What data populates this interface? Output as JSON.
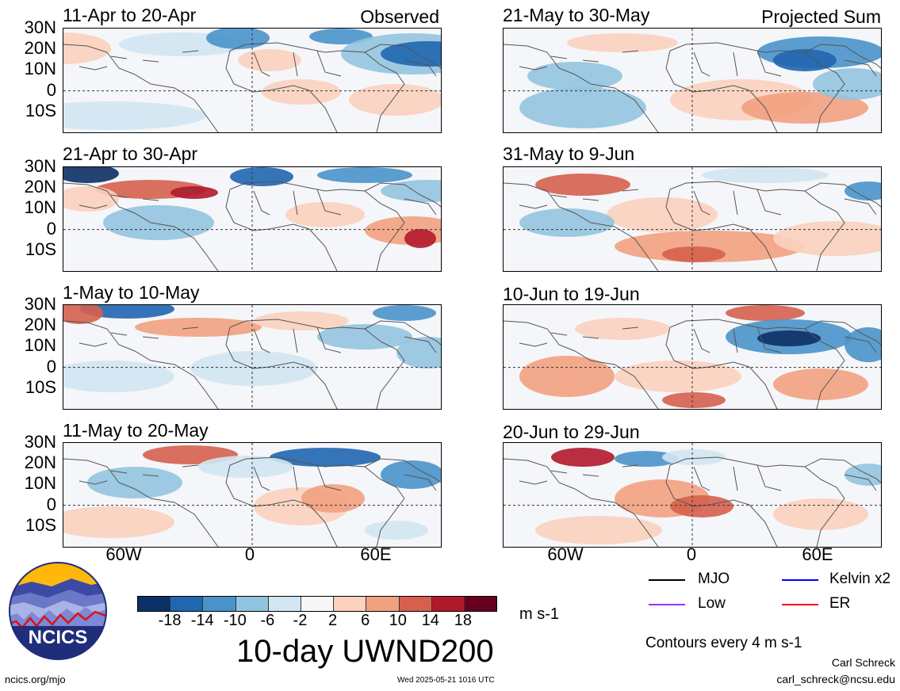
{
  "colors": {
    "land": "#f4f6f9",
    "coast": "#555555",
    "palette": [
      "#0d3066",
      "#2066b0",
      "#4a93c9",
      "#93c4df",
      "#d1e6f1",
      "#f7f7f7",
      "#fbd2bc",
      "#f2a17f",
      "#d6604d",
      "#b2182b",
      "#67001f"
    ]
  },
  "observed_label": "Observed",
  "projected_label": "Projected Sum",
  "left_panels": [
    {
      "title": "11-Apr to 20-Apr"
    },
    {
      "title": "21-Apr to 30-Apr"
    },
    {
      "title": "1-May to 10-May"
    },
    {
      "title": "11-May to 20-May"
    }
  ],
  "right_panels": [
    {
      "title": "21-May to 30-May"
    },
    {
      "title": "31-May to 9-Jun"
    },
    {
      "title": "10-Jun to 19-Jun"
    },
    {
      "title": "20-Jun to 29-Jun"
    }
  ],
  "lat_labels": [
    "30N",
    "20N",
    "10N",
    "0",
    "10S"
  ],
  "lon_labels": [
    "60W",
    "0",
    "60E"
  ],
  "colorbar_labels": [
    "-18",
    "-14",
    "-10",
    "-6",
    "-2",
    "2",
    "6",
    "10",
    "14",
    "18"
  ],
  "units": "m s-1",
  "main_title": "10-day UWND200",
  "legend": {
    "mjo": {
      "label": "MJO",
      "color": "#000000"
    },
    "kelvin": {
      "label": "Kelvin x2",
      "color": "#0000ff"
    },
    "low": {
      "label": "Low",
      "color": "#9933ff"
    },
    "er": {
      "label": "ER",
      "color": "#ff0000"
    }
  },
  "contours_note": "Contours every 4 m s-1",
  "logo_text": "NCICS",
  "site_url": "ncics.org/mjo",
  "timestamp": "Wed 2025-05-21 1016 UTC",
  "author": "Carl Schreck",
  "email": "carl_schreck@ncsu.edu"
}
